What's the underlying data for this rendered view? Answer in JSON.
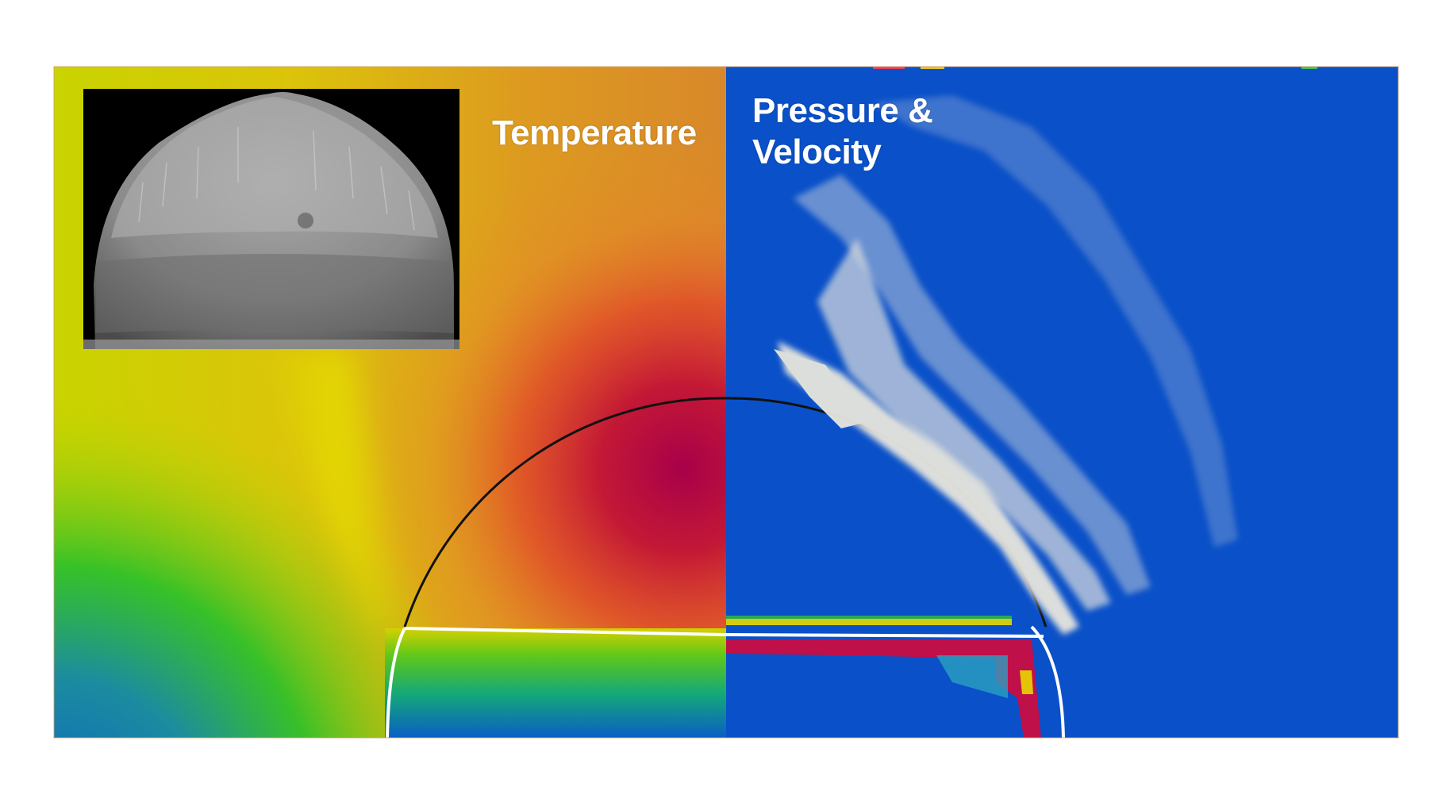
{
  "labels": {
    "temperature": "Temperature",
    "pressure_line1": "Pressure &",
    "pressure_line2": "Velocity"
  },
  "colors": {
    "background": "#ffffff",
    "temperature_hot": "#b0103e",
    "temperature_warm": "#e88a22",
    "temperature_mid": "#d6d400",
    "temperature_cool": "#1cbf2e",
    "temperature_cold": "#0a5fc4",
    "pressure_field": "#0a50c8",
    "velocity_vectors": "#e8e6de",
    "interface_line": "#111111",
    "front_line": "#ffffff",
    "inset_background": "#000000"
  },
  "panels": {
    "left": "temperature-field",
    "right": "pressure-velocity-field",
    "inset": "droplet-photograph"
  }
}
